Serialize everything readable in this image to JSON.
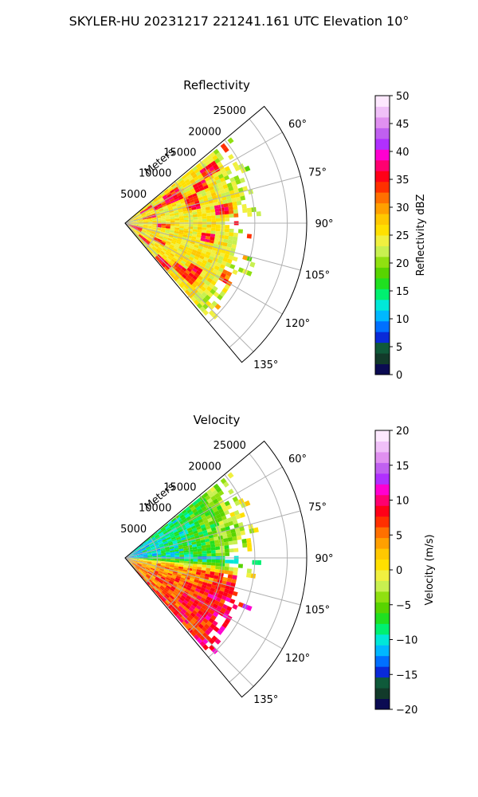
{
  "figure": {
    "title": "SKYLER-HU  20231217  221241.161 UTC Elevation 10°"
  },
  "chart_data": [
    {
      "type": "heatmap",
      "projection": "polar-sector",
      "title": "Reflectivity",
      "range_axis_label": "Meters",
      "range_ticks": [
        5000,
        10000,
        15000,
        20000,
        25000
      ],
      "range_tick_labels": [
        "5000",
        "10000",
        "15000",
        "20000",
        "25000"
      ],
      "azimuth_ticks": [
        60,
        75,
        90,
        105,
        120,
        135
      ],
      "azimuth_tick_labels": [
        "60°",
        "75°",
        "90°",
        "105°",
        "120°",
        "135°"
      ],
      "azimuth_range": [
        50,
        140
      ],
      "range_max": 28000,
      "grid": true,
      "colorbar": {
        "label": "Reflectivity dBZ",
        "range": [
          0,
          50
        ],
        "ticks": [
          0,
          5,
          10,
          15,
          20,
          25,
          30,
          35,
          40,
          45,
          50
        ],
        "tick_labels": [
          "0",
          "5",
          "10",
          "15",
          "20",
          "25",
          "30",
          "35",
          "40",
          "45",
          "50"
        ],
        "colors": [
          "#0b0b52",
          "#123a2a",
          "#0f5a3a",
          "#0a2ad8",
          "#0070ff",
          "#00b8ff",
          "#00e8d8",
          "#00f070",
          "#20e020",
          "#58d400",
          "#90e010",
          "#c8f050",
          "#f0f040",
          "#ffe000",
          "#ffc800",
          "#ffa000",
          "#ff7000",
          "#ff3000",
          "#ff0018",
          "#ff0070",
          "#ff00d0",
          "#b030ff",
          "#c060f0",
          "#e090f0",
          "#f0c0f8",
          "#fde8fe"
        ]
      }
    },
    {
      "type": "heatmap",
      "projection": "polar-sector",
      "title": "Velocity",
      "range_axis_label": "Meters",
      "range_ticks": [
        5000,
        10000,
        15000,
        20000,
        25000
      ],
      "range_tick_labels": [
        "5000",
        "10000",
        "15000",
        "20000",
        "25000"
      ],
      "azimuth_ticks": [
        60,
        75,
        90,
        105,
        120,
        135
      ],
      "azimuth_tick_labels": [
        "60°",
        "75°",
        "90°",
        "105°",
        "120°",
        "135°"
      ],
      "azimuth_range": [
        50,
        140
      ],
      "range_max": 28000,
      "grid": true,
      "colorbar": {
        "label": "Velocity (m/s)",
        "range": [
          -20,
          20
        ],
        "ticks": [
          -20,
          -15,
          -10,
          -5,
          0,
          5,
          10,
          15,
          20
        ],
        "tick_labels": [
          "−20",
          "−15",
          "−10",
          "−5",
          "0",
          "5",
          "10",
          "15",
          "20"
        ],
        "colors": [
          "#0b0b52",
          "#123a2a",
          "#0f5a3a",
          "#0a2ad8",
          "#0070ff",
          "#00b8ff",
          "#00e8d8",
          "#00f070",
          "#20e020",
          "#58d400",
          "#90e010",
          "#c8f050",
          "#f0f040",
          "#ffe000",
          "#ffc800",
          "#ffa000",
          "#ff7000",
          "#ff3000",
          "#ff0018",
          "#ff0070",
          "#ff00d0",
          "#b030ff",
          "#c060f0",
          "#e090f0",
          "#f0c0f8",
          "#fde8fe"
        ]
      }
    }
  ]
}
